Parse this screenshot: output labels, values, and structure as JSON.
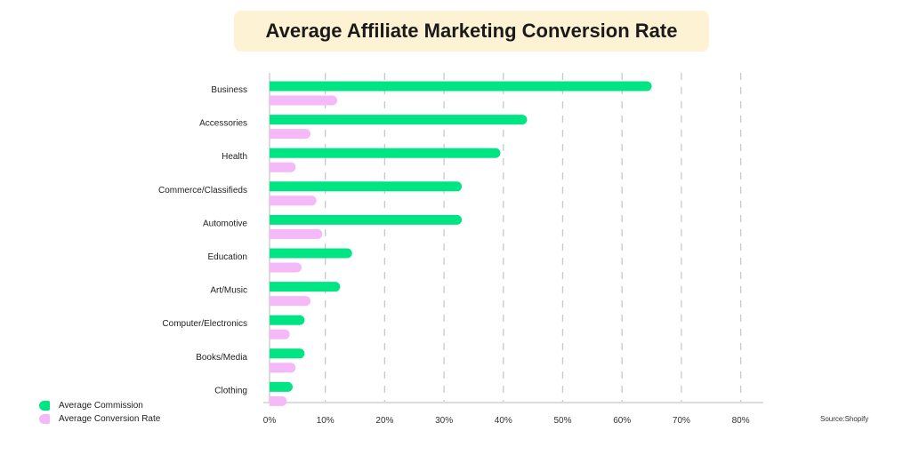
{
  "chart_data": {
    "type": "bar",
    "orientation": "horizontal",
    "title": "Average Affiliate Marketing Conversion Rate",
    "categories": [
      "Business",
      "Accessories",
      "Health",
      "Commerce/Classifieds",
      "Automotive",
      "Education",
      "Art/Music",
      "Computer/Electronics",
      "Books/Media",
      "Clothing"
    ],
    "series": [
      {
        "name": "Average Commission",
        "color": "#00e583",
        "values": [
          65,
          44,
          39.5,
          33,
          33,
          14.5,
          12.5,
          6.5,
          6.5,
          4.5
        ]
      },
      {
        "name": "Average Conversion Rate",
        "color": "#f5b8f8",
        "values": [
          12,
          7.5,
          5,
          8.5,
          9.5,
          6,
          7.5,
          4,
          5,
          3.5
        ]
      }
    ],
    "xlim": [
      0,
      80
    ],
    "xticks": [
      "0%",
      "10%",
      "20%",
      "30%",
      "40%",
      "50%",
      "60%",
      "70%",
      "80%"
    ],
    "grid": "vertical dashed",
    "legend": "bottom-left",
    "source": "Source:Shopify"
  }
}
